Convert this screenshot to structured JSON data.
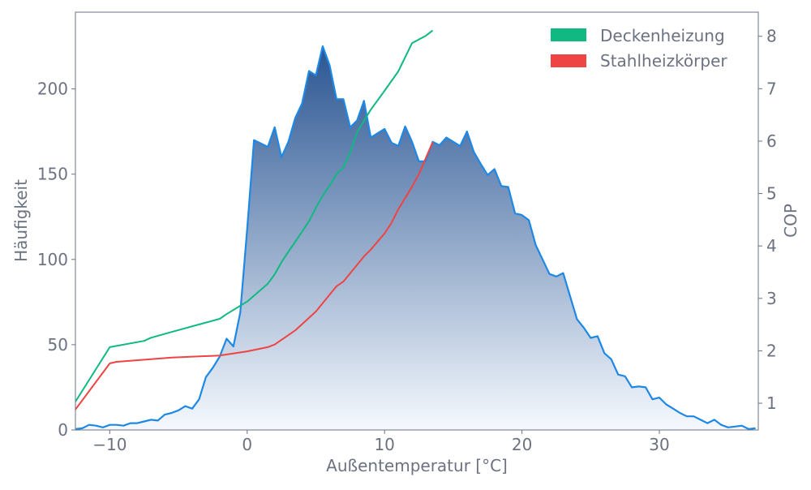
{
  "chart_data": {
    "type": "area",
    "xlabel": "Außentemperatur [°C]",
    "ylabel": "Häufigkeit",
    "y2label": "COP",
    "xlim": [
      -12.5,
      37.2
    ],
    "ylim": [
      0,
      245
    ],
    "y2lim": [
      0.49,
      8.46
    ],
    "xticks": [
      -10,
      0,
      10,
      20,
      30
    ],
    "xtick_labels": [
      "−10",
      "0",
      "10",
      "20",
      "30"
    ],
    "yticks": [
      0,
      50,
      100,
      150,
      200
    ],
    "y2ticks": [
      1,
      2,
      3,
      4,
      5,
      6,
      7,
      8
    ],
    "grid": false,
    "legend_position": "top-right",
    "histogram": {
      "color": "#1e88e5",
      "gradient_top": "#2a5592",
      "gradient_bottom": "#f5f9fe",
      "x": [
        -12.5,
        -12,
        -11.5,
        -11,
        -10.5,
        -10,
        -9.5,
        -9,
        -8.5,
        -8,
        -7.5,
        -7,
        -6.5,
        -6,
        -5.5,
        -5,
        -4.5,
        -4,
        -3.5,
        -3,
        -2.5,
        -2,
        -1.5,
        -1,
        -0.5,
        0,
        0.5,
        1,
        1.5,
        2,
        2.5,
        3,
        3.5,
        4,
        4.5,
        5,
        5.5,
        6,
        6.5,
        7,
        7.5,
        8,
        8.5,
        9,
        9.5,
        10,
        10.5,
        11,
        11.5,
        12,
        12.5,
        13,
        13.5,
        14,
        14.5,
        15,
        15.5,
        16,
        16.5,
        17,
        17.5,
        18,
        18.5,
        19,
        19.5,
        20,
        20.5,
        21,
        21.5,
        22,
        22.5,
        23,
        23.5,
        24,
        24.5,
        25,
        25.5,
        26,
        26.5,
        27,
        27.5,
        28,
        28.5,
        29,
        29.5,
        30,
        30.5,
        31,
        31.5,
        32,
        32.5,
        33,
        33.5,
        34,
        34.5,
        35,
        35.5,
        36,
        36.5,
        37
      ],
      "values": [
        0.5,
        1,
        3,
        2.5,
        1.5,
        3,
        3,
        2.5,
        4,
        4,
        5,
        6,
        5.5,
        9,
        10,
        11.5,
        14,
        12.5,
        18,
        31,
        36.5,
        43,
        53.5,
        49,
        69,
        118,
        170,
        168,
        166,
        177.5,
        160,
        169,
        183,
        191.5,
        210.5,
        208,
        225,
        214,
        194,
        194,
        177.5,
        181.5,
        193,
        171.5,
        174,
        176.5,
        168.5,
        166.5,
        178,
        169,
        157.5,
        157.5,
        169,
        167,
        171.5,
        169,
        166.5,
        175,
        163,
        156,
        149.5,
        153,
        143,
        142.5,
        127,
        126,
        123,
        108.5,
        100,
        91.5,
        90,
        92,
        78.5,
        65,
        60,
        54,
        55,
        45,
        41.5,
        32.5,
        31.5,
        25,
        25.5,
        25,
        18,
        19,
        15,
        12.5,
        10,
        8,
        8,
        6,
        4,
        6,
        3,
        1.5,
        2,
        2.5,
        0.5,
        1
      ]
    },
    "series": [
      {
        "name": "Deckenheizung",
        "color": "#10b981",
        "x": [
          -12.5,
          -10,
          -7.5,
          -7,
          -5.5,
          -2,
          -1.5,
          0,
          1.5,
          2,
          2.5,
          3,
          3.5,
          4.5,
          5,
          5.5,
          6,
          6.5,
          7,
          7.5,
          8,
          8.5,
          9,
          10,
          11,
          12,
          13,
          13.5
        ],
        "values": [
          1.03,
          2.07,
          2.19,
          2.25,
          2.36,
          2.61,
          2.7,
          2.94,
          3.28,
          3.46,
          3.69,
          3.89,
          4.08,
          4.47,
          4.73,
          4.96,
          5.15,
          5.37,
          5.5,
          5.78,
          6.17,
          6.39,
          6.6,
          6.96,
          7.33,
          7.87,
          8.01,
          8.11
        ]
      },
      {
        "name": "Stahlheizkörper",
        "color": "#ef4444",
        "x": [
          -12.5,
          -10,
          -9.5,
          -7,
          -5.5,
          -2,
          0,
          1.5,
          2,
          3.5,
          5,
          6.5,
          7,
          8.5,
          9,
          10,
          10.5,
          11,
          12,
          12.5,
          13.5
        ],
        "values": [
          0.88,
          1.76,
          1.79,
          1.84,
          1.87,
          1.91,
          1.99,
          2.07,
          2.12,
          2.39,
          2.75,
          3.23,
          3.32,
          3.8,
          3.93,
          4.24,
          4.44,
          4.7,
          5.13,
          5.37,
          5.98
        ]
      }
    ]
  }
}
